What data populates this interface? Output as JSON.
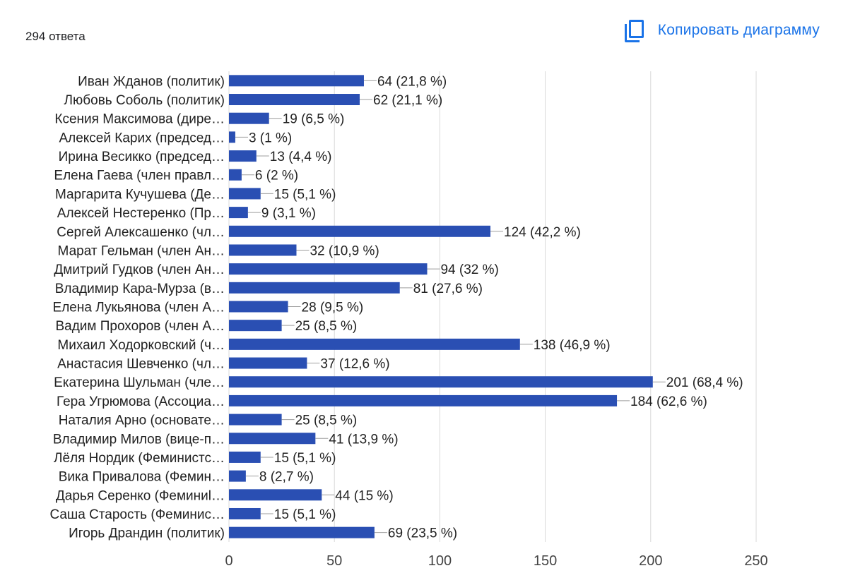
{
  "header": {
    "responses_text": "294 ответа",
    "copy_label": "Копировать диаграмму",
    "copy_icon": "copy-icon"
  },
  "colors": {
    "bar": "#2a4fb3",
    "grid": "#d9d9d9",
    "accent": "#1a73e8"
  },
  "chart_data": {
    "type": "bar",
    "orientation": "horizontal",
    "title": "",
    "xlabel": "",
    "ylabel": "",
    "xlim": [
      0,
      250
    ],
    "ticks": [
      0,
      50,
      100,
      150,
      200,
      250
    ],
    "tick_labels": [
      "0",
      "50",
      "100",
      "150",
      "200",
      "250"
    ],
    "grid": true,
    "categories": [
      "Иван Жданов (политик)",
      "Любовь Соболь (политик)",
      "Ксения Максимова (дире…",
      "Алексей Карих (председ…",
      "Ирина Весикко (председ…",
      "Елена Гаева (член правл…",
      "Маргарита Кучушева (Де…",
      "Алексей Нестеренко (Пр…",
      "Сергей Алексашенко (чл…",
      "Марат Гельман (член Ан…",
      "Дмитрий Гудков (член Ан…",
      "Владимир Кара-Мурза (в…",
      "Елена Лукьянова (член А…",
      "Вадим Прохоров (член А…",
      "Михаил Ходорковский (ч…",
      "Анастасия Шевченко (чл…",
      "Екатерина Шульман (чле…",
      "Гера Угрюмова (Ассоциа…",
      "Наталия Арно (основате…",
      "Владимир Милов (вице-п…",
      "Лёля Нордик (Феминистс…",
      "Вика Привалова (Фемин…",
      "Дарья Серенко (Феминиl…",
      "Саша Старость (Феминис…",
      "Игорь Драндин (политик)"
    ],
    "values": [
      64,
      62,
      19,
      3,
      13,
      6,
      15,
      9,
      124,
      32,
      94,
      81,
      28,
      25,
      138,
      37,
      201,
      184,
      25,
      41,
      15,
      8,
      44,
      15,
      69
    ],
    "value_labels": [
      "64 (21,8 %)",
      "62 (21,1 %)",
      "19 (6,5 %)",
      "3 (1 %)",
      "13 (4,4 %)",
      "6 (2 %)",
      "15 (5,1 %)",
      "9 (3,1 %)",
      "124 (42,2 %)",
      "32 (10,9 %)",
      "94 (32 %)",
      "81 (27,6 %)",
      "28 (9,5 %)",
      "25 (8,5 %)",
      "138 (46,9 %)",
      "37 (12,6 %)",
      "201 (68,4 %)",
      "184 (62,6 %)",
      "25 (8,5 %)",
      "41 (13,9 %)",
      "15 (5,1 %)",
      "8 (2,7 %)",
      "44 (15 %)",
      "15 (5,1 %)",
      "69 (23,5 %)"
    ]
  }
}
